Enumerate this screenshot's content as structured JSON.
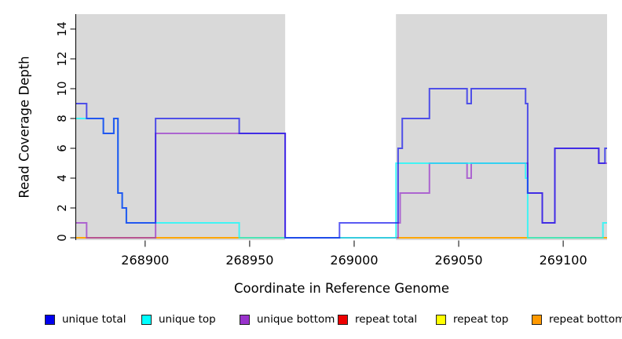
{
  "chart_data": {
    "type": "line",
    "subtype": "step-coverage-plot",
    "title": "",
    "xlabel": "Coordinate in Reference Genome",
    "ylabel": "Read Coverage Depth",
    "xlim": [
      268867,
      269121
    ],
    "ylim": [
      0,
      15
    ],
    "x_ticks": [
      268900,
      268950,
      269000,
      269050,
      269100
    ],
    "y_ticks": [
      0,
      2,
      4,
      6,
      8,
      10,
      12,
      14
    ],
    "grid": false,
    "legend_position": "bottom",
    "background_color": "#ffffff",
    "shaded_region_color": "#d9d9d9",
    "shaded_regions": [
      {
        "x0": 268867,
        "x1": 268967
      },
      {
        "x0": 269020,
        "x1": 269121
      }
    ],
    "line_opacity": 0.7,
    "series": [
      {
        "name": "repeat total",
        "color": "#ee0000",
        "steps": [
          [
            268867,
            0
          ],
          [
            269121,
            0
          ]
        ]
      },
      {
        "name": "repeat top",
        "color": "#ffff00",
        "steps": [
          [
            268867,
            0
          ],
          [
            269121,
            0
          ]
        ]
      },
      {
        "name": "repeat bottom",
        "color": "#ff9900",
        "steps": [
          [
            268867,
            0
          ],
          [
            269121,
            0
          ]
        ]
      },
      {
        "name": "unique bottom",
        "color": "#9932cc",
        "steps": [
          [
            268867,
            1
          ],
          [
            268872,
            0
          ],
          [
            268905,
            7
          ],
          [
            268967,
            0
          ],
          [
            269021,
            1
          ],
          [
            269022,
            3
          ],
          [
            269036,
            5
          ],
          [
            269054,
            4
          ],
          [
            269056,
            5
          ],
          [
            269083,
            3
          ],
          [
            269090,
            1
          ],
          [
            269096,
            6
          ],
          [
            269117,
            5
          ],
          [
            269121,
            5
          ]
        ]
      },
      {
        "name": "unique top",
        "color": "#00ffff",
        "steps": [
          [
            268867,
            8
          ],
          [
            268880,
            7
          ],
          [
            268885,
            8
          ],
          [
            268887,
            3
          ],
          [
            268889,
            2
          ],
          [
            268891,
            1
          ],
          [
            268945,
            0
          ],
          [
            269020,
            5
          ],
          [
            269082,
            4
          ],
          [
            269083,
            0
          ],
          [
            269119,
            1
          ],
          [
            269121,
            1
          ]
        ]
      },
      {
        "name": "unique total",
        "color": "#1414ee",
        "steps": [
          [
            268867,
            9
          ],
          [
            268872,
            8
          ],
          [
            268880,
            7
          ],
          [
            268885,
            8
          ],
          [
            268887,
            3
          ],
          [
            268889,
            2
          ],
          [
            268891,
            1
          ],
          [
            268905,
            8
          ],
          [
            268945,
            7
          ],
          [
            268967,
            0
          ],
          [
            268993,
            1
          ],
          [
            269021,
            6
          ],
          [
            269023,
            8
          ],
          [
            269036,
            10
          ],
          [
            269054,
            9
          ],
          [
            269056,
            10
          ],
          [
            269082,
            9
          ],
          [
            269083,
            3
          ],
          [
            269090,
            1
          ],
          [
            269096,
            6
          ],
          [
            269117,
            5
          ],
          [
            269120,
            6
          ],
          [
            269121,
            6
          ]
        ]
      }
    ],
    "legend": [
      {
        "label": "unique total",
        "color": "#0000ee"
      },
      {
        "label": "unique top",
        "color": "#00ffff"
      },
      {
        "label": "unique bottom",
        "color": "#9932cc"
      },
      {
        "label": "repeat total",
        "color": "#ee0000"
      },
      {
        "label": "repeat top",
        "color": "#ffff00"
      },
      {
        "label": "repeat bottom",
        "color": "#ff9900"
      }
    ]
  }
}
